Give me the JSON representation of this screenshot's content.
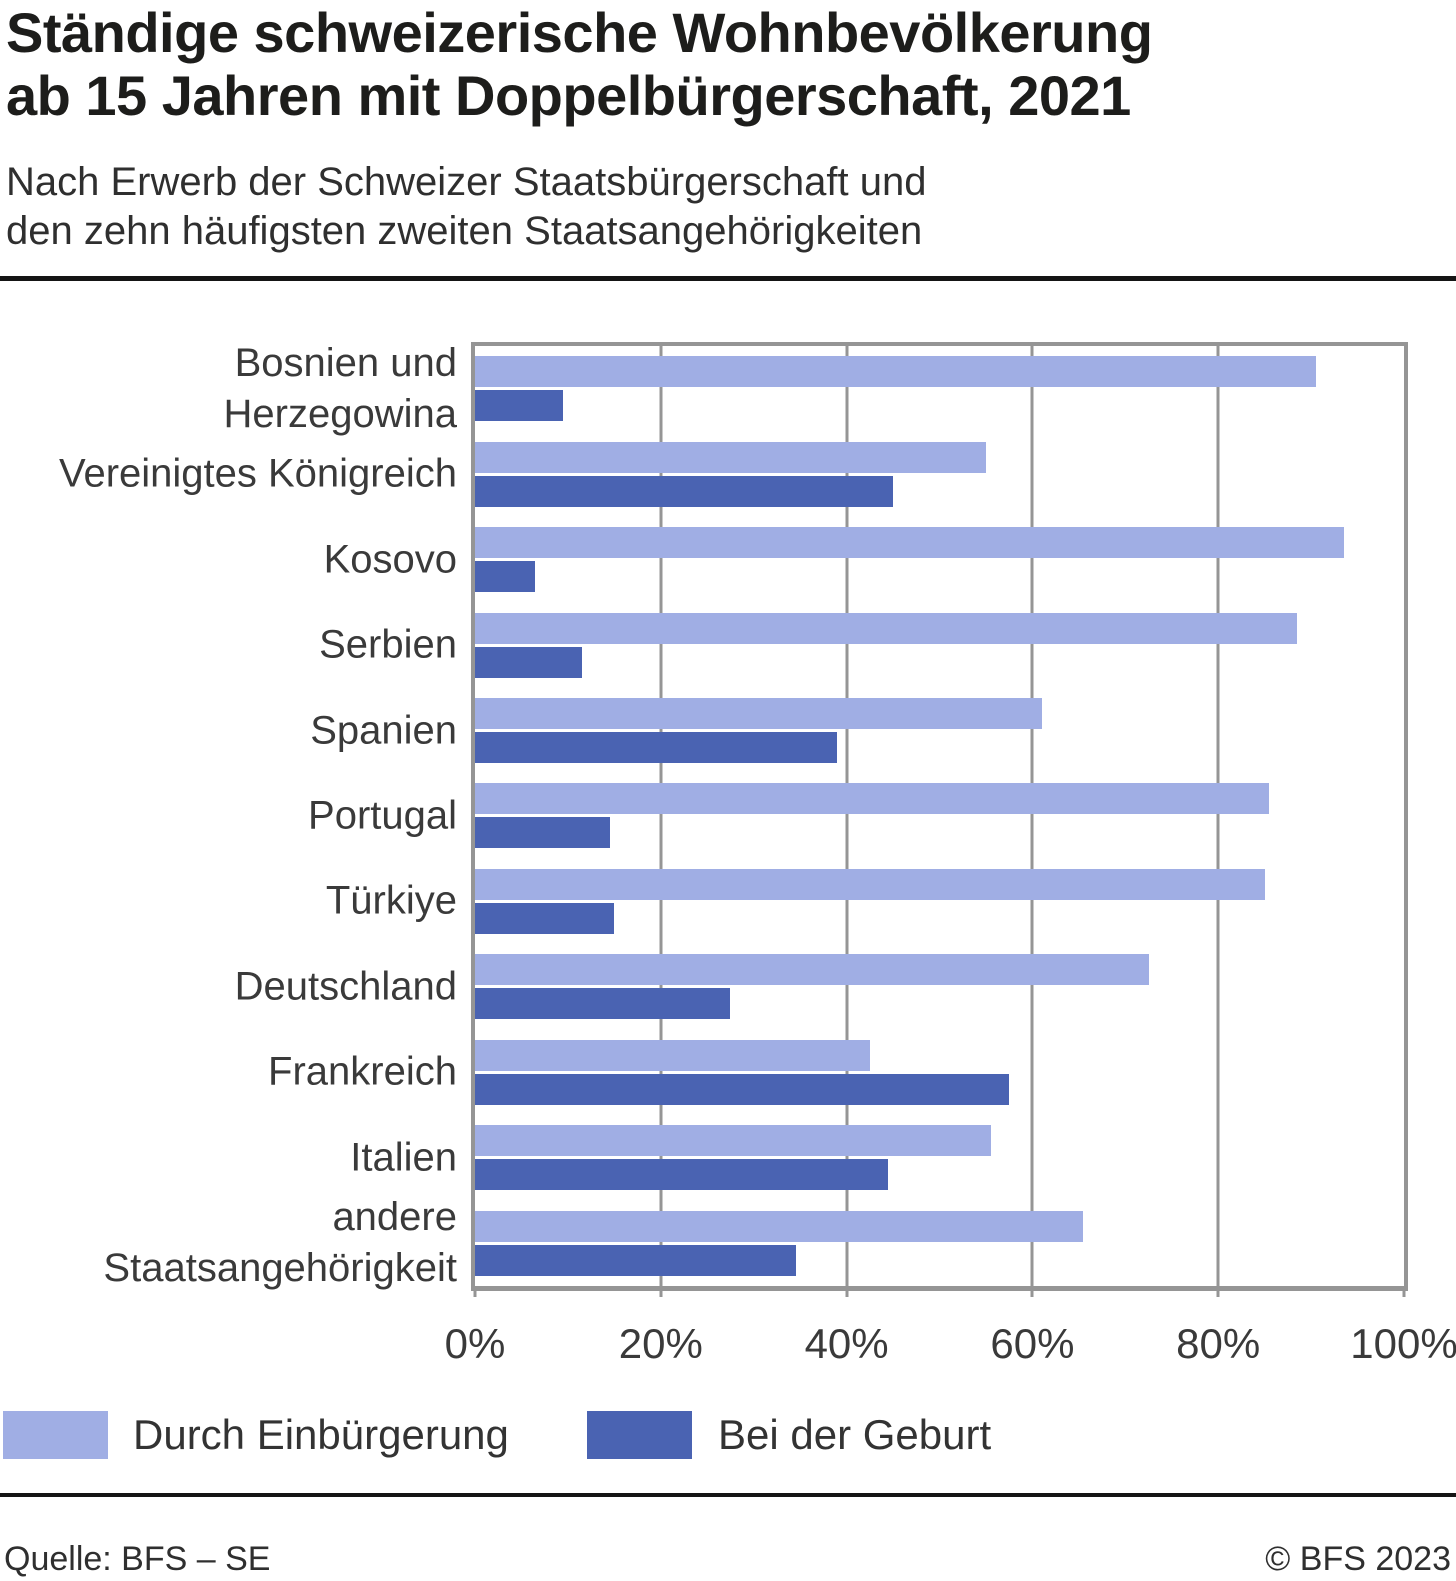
{
  "header": {
    "title_lines": [
      "Ständige schweizerische Wohnbevölkerung",
      "ab 15 Jahren mit Doppelbürgerschaft, 2021"
    ],
    "subtitle_lines": [
      "Nach Erwerb der Schweizer Staatsbürgerschaft und",
      "den zehn häufigsten zweiten Staatsangehörigkeiten"
    ]
  },
  "chart_data": {
    "type": "bar",
    "orientation": "horizontal",
    "title": "Ständige schweizerische Wohnbevölkerung ab 15 Jahren mit Doppelbürgerschaft, 2021",
    "subtitle": "Nach Erwerb der Schweizer Staatsbürgerschaft und den zehn häufigsten zweiten Staatsangehörigkeiten",
    "categories": [
      "Bosnien und Herzegowina",
      "Vereinigtes Königreich",
      "Kosovo",
      "Serbien",
      "Spanien",
      "Portugal",
      "Türkiye",
      "Deutschland",
      "Frankreich",
      "Italien",
      "andere\nStaatsangehörigkeit"
    ],
    "series": [
      {
        "name": "Durch Einbürgerung",
        "color": "#a0aee4",
        "values": [
          90.5,
          55,
          93.5,
          88.5,
          61,
          85.5,
          85,
          72.5,
          42.5,
          55.5,
          65.5
        ]
      },
      {
        "name": "Bei der Geburt",
        "color": "#4a63b2",
        "values": [
          9.5,
          45,
          6.5,
          11.5,
          39,
          14.5,
          15,
          27.5,
          57.5,
          44.5,
          34.5
        ]
      }
    ],
    "x_axis": {
      "ticks": [
        "0%",
        "20%",
        "40%",
        "60%",
        "80%",
        "100%"
      ],
      "min": 0,
      "max": 100,
      "unit": "%"
    },
    "grid": "vertical",
    "legend_position": "bottom"
  },
  "footer": {
    "source": "Quelle: BFS – SE",
    "copyright": "© BFS 2023"
  },
  "colors": {
    "series_einbuergerung": "#a0aee4",
    "series_geburt": "#4a63b2",
    "axis_gray": "#959595",
    "text_dark": "#1d1d1b",
    "rule_black": "#151515"
  }
}
